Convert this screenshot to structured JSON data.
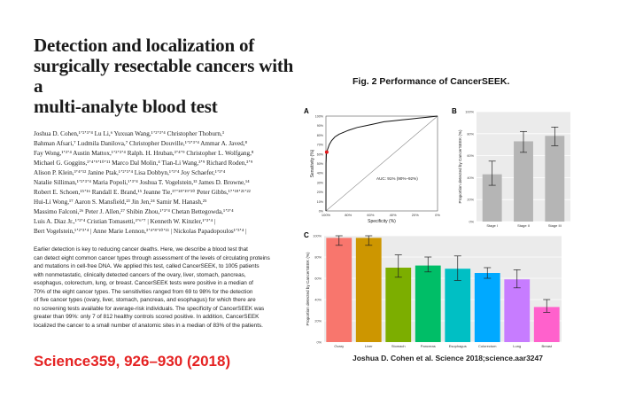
{
  "paper": {
    "title": "Detection and localization of\nsurgically resectable cancers with a\nmulti-analyte blood test",
    "authors": [
      "Joshua D. Cohen,¹ʼ²ʼ³ʼ⁴ Lu Li,⁶ Yuxuan Wang,¹ʼ²ʼ³ʼ⁴ Christopher Thoburn,³",
      "Bahman Afsari,⁷ Ludmila Danilova,⁷ Christopher Douville,¹ʼ²ʼ³ʼ⁴ Ammar A. Javed,⁸",
      "Fay Wong,¹ʼ³ʼ⁴ Austin Mattox,¹ʼ²ʼ³ʼ⁴ Ralph. H. Hruban,³ʼ⁴ʼ⁹ Christopher L. Wolfgang,⁸",
      "Michael G. Goggins,³ʼ⁴ʼ⁹ʼ¹⁰ʼ¹¹ Marco Dal Molin,⁴ Tian-Li Wang,³ʼ⁹ Richard Roden,³ʼ⁹",
      "Alison P. Klein,³ʼ⁴ʼ¹² Janine Ptak,¹ʼ²ʼ³ʼ⁴ Lisa Dobbyn,¹ʼ³ʼ⁴ Joy Schaefer,¹ʼ³ʼ⁴",
      "Natalie Silliman,¹ʼ²ʼ³ʼ⁴ Maria Popoli,¹ʼ³ʼ⁴ Joshua T. Vogelstein,¹³ James D. Browne,¹⁴",
      "Robert E. Schoen,¹⁵ʼ¹⁶ Randall E. Brand,¹⁵ Jeanne Tie,¹⁷ʼ¹⁸ʼ¹⁹ʼ²⁰ Peter Gibbs,¹⁷ʼ¹⁸ʼ²¹ʼ²²",
      "Hui-Li Wong,¹⁷ Aaron S. Mansfield,²³ Jin Jen,²⁴ Samir M. Hanash,²⁵",
      "Massimo Falconi,²⁶ Peter J. Allen,²⁷ Shibin Zhou,¹ʼ³ʼ⁴ Chetan Bettegowda,¹ʼ³ʼ⁴",
      "Luis A. Diaz Jr.,¹ʼ³ʼ⁴ Cristian Tomasetti,³ʼ⁶ʼ⁷ | Kenneth W. Kinzler,¹ʼ³ʼ⁴ |",
      "Bert Vogelstein,¹ʼ²ʼ³ʼ⁴ | Anne Marie Lennon,³ʼ⁴ʼ⁸ʼ¹⁰ʼ¹¹ | Nickolas Papadopoulos¹ʼ³ʼ⁴ |"
    ],
    "abstract_lines": [
      "Earlier detection is key to reducing cancer deaths. Here, we describe a blood test that",
      "can detect eight common cancer types through assessment of the levels of circulating proteins",
      "and mutations in cell-free DNA. We applied this test, called CancerSEEK, to 1005 patients",
      "with nonmetastatic, clinically detected cancers of the ovary, liver, stomach, pancreas,",
      "esophagus, colorectum, lung, or breast. CancerSEEK tests were positive in a median of",
      "70% of the eight cancer types. The sensitivities ranged from 69 to 98% for the detection",
      "of five cancer types (ovary, liver, stomach, pancreas, and esophagus) for which there are",
      "no screening tests available for average-risk individuals. The specificity of CancerSEEK was",
      "greater than 99%: only 7 of 812 healthy controls scored positive. In addition, CancerSEEK",
      "localized the cancer to a small number of anatomic sites in a median of 83% of the patients."
    ],
    "citation": "Science359, 926–930 (2018)"
  },
  "figure": {
    "title": "Fig. 2 Performance of CancerSEEK.",
    "credit": "Joshua D. Cohen et al. Science 2018;science.aar3247",
    "panel_labels": {
      "a": "A",
      "b": "B",
      "c": "C"
    },
    "colors": {
      "stage_bar": "#b5b5b5",
      "panel_bg": "#ebebeb",
      "roc_line": "#111111",
      "roc_point": "#e31a1c"
    }
  },
  "chart_data": [
    {
      "type": "line",
      "panel": "A",
      "xlabel": "Specificity (%)",
      "ylabel": "Sensitivity (%)",
      "x_ticks": [
        "100%",
        "80%",
        "60%",
        "40%",
        "20%",
        "0%"
      ],
      "y_ticks": [
        "0%",
        "10%",
        "20%",
        "30%",
        "40%",
        "50%",
        "60%",
        "70%",
        "80%",
        "90%",
        "100%"
      ],
      "annotation": "AUC: 91% (90%–92%)",
      "series": [
        {
          "x": [
            100,
            99.9,
            99.6,
            99.2,
            98.5,
            97,
            95,
            92,
            88,
            84,
            80,
            72,
            64,
            56,
            48,
            40,
            32,
            24,
            16,
            8,
            0
          ],
          "y": [
            0,
            50,
            60,
            62,
            65,
            70,
            74,
            78,
            81,
            83,
            85,
            88,
            90,
            92,
            94,
            95,
            96,
            97,
            98,
            99,
            100
          ]
        }
      ],
      "highlight_point": {
        "x": 99.3,
        "y": 62
      },
      "diagonal": true
    },
    {
      "type": "bar",
      "panel": "B",
      "ylabel": "Proportion detected by CancerSEEK (%)",
      "categories": [
        "Stage I",
        "Stage II",
        "Stage III"
      ],
      "values": [
        43,
        73,
        78
      ],
      "error_low": [
        33,
        63,
        69
      ],
      "error_high": [
        55,
        82,
        86
      ],
      "y_ticks": [
        "0%",
        "20%",
        "40%",
        "60%",
        "80%",
        "100%"
      ],
      "ylim": [
        0,
        100
      ]
    },
    {
      "type": "bar",
      "panel": "C",
      "ylabel": "Proportion detected by CancerSEEK (%)",
      "categories": [
        "Ovary",
        "Liver",
        "Stomach",
        "Pancreas",
        "Esophagus",
        "Colorectum",
        "Lung",
        "Breast"
      ],
      "values": [
        98,
        98,
        70,
        72,
        69,
        65,
        59,
        33
      ],
      "error_low": [
        91,
        91,
        61,
        66,
        58,
        60,
        51,
        28
      ],
      "error_high": [
        100,
        100,
        82,
        80,
        81,
        70,
        68,
        40
      ],
      "colors": [
        "#f8766d",
        "#cd9600",
        "#7cae00",
        "#00be67",
        "#00bfc4",
        "#00a9ff",
        "#c77cff",
        "#ff61cc"
      ],
      "y_ticks": [
        "0%",
        "20%",
        "40%",
        "60%",
        "80%",
        "100%"
      ],
      "ylim": [
        0,
        100
      ]
    }
  ]
}
